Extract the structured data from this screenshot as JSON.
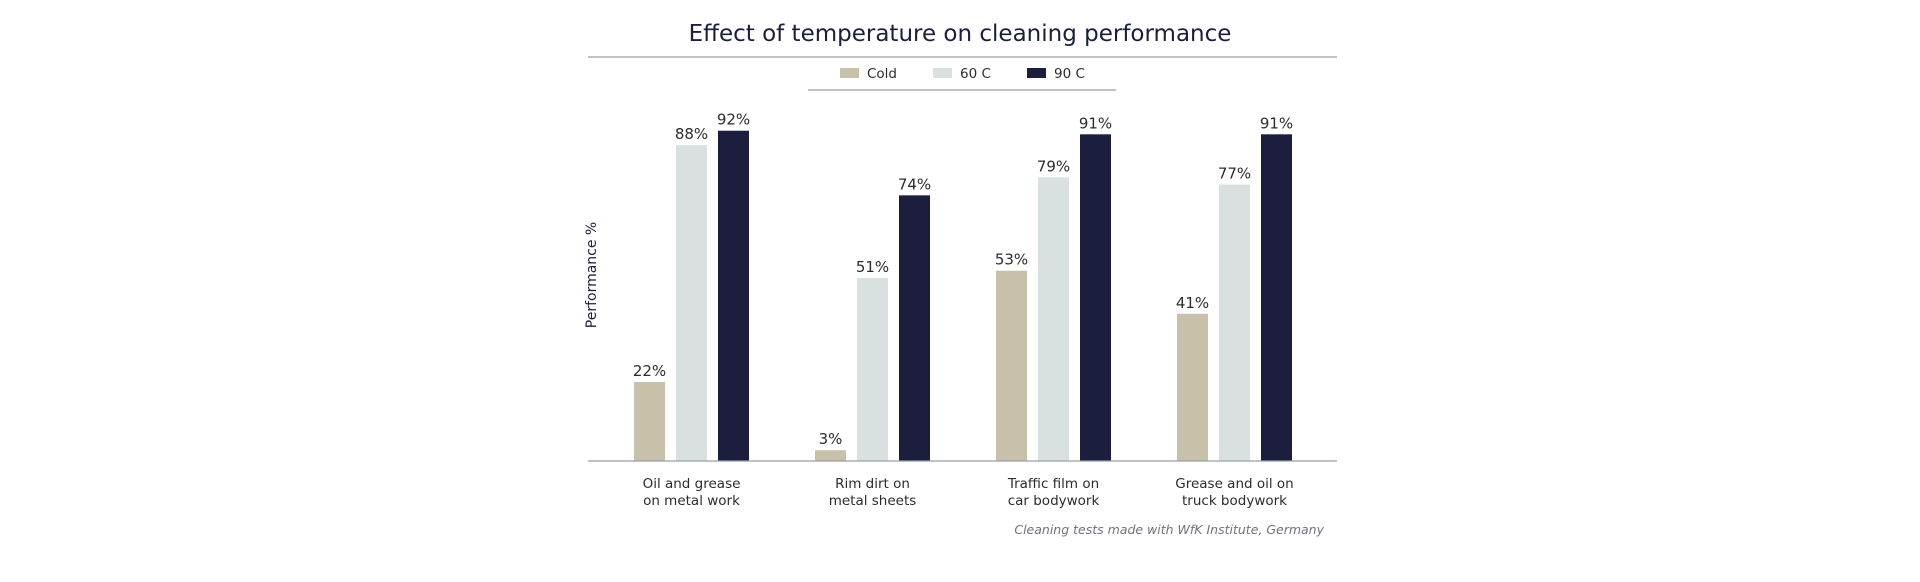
{
  "chart_data": {
    "type": "bar",
    "title": "Effect of temperature on cleaning performance",
    "ylabel": "Performance %",
    "xlabel": "",
    "ylim": [
      0,
      100
    ],
    "grid": false,
    "legend_position": "top-center",
    "categories": [
      [
        "Oil and grease",
        "on metal work"
      ],
      [
        "Rim dirt on",
        "metal sheets"
      ],
      [
        "Traffic film on",
        "car bodywork"
      ],
      [
        "Grease and oil on",
        "truck bodywork"
      ]
    ],
    "series": [
      {
        "name": "Cold",
        "color": "#c8c1aa",
        "values": [
          22,
          3,
          53,
          41
        ],
        "labels": [
          "22%",
          "3%",
          "53%",
          "41%"
        ]
      },
      {
        "name": "60 C",
        "color": "#d9e1e0",
        "values": [
          88,
          51,
          79,
          77
        ],
        "labels": [
          "88%",
          "51%",
          "79%",
          "77%"
        ]
      },
      {
        "name": "90 C",
        "color": "#1b1f3d",
        "values": [
          92,
          74,
          91,
          91
        ],
        "labels": [
          "92%",
          "74%",
          "91%",
          "91%"
        ]
      }
    ],
    "source": "Cleaning tests made with WfK Institute, Germany"
  }
}
